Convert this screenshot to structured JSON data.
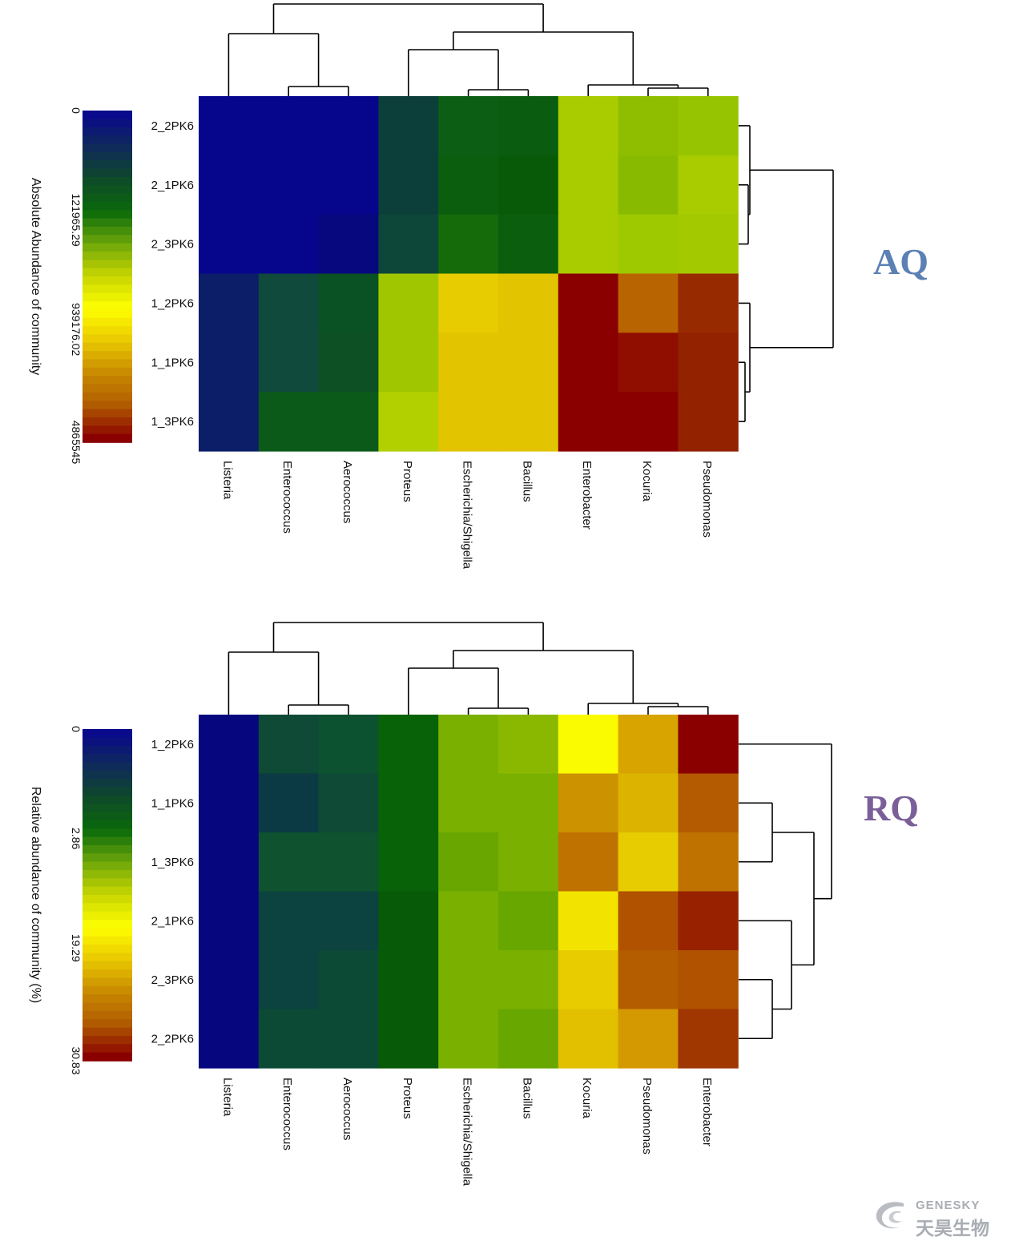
{
  "colors": {
    "aq_tag": "#5b80b4",
    "rq_tag": "#7a5f99",
    "dendrogram": "#000000",
    "brand": "#a9adb3",
    "colorscale": [
      "#0a0a8c",
      "#0f2a5a",
      "#0e4a2a",
      "#0a6a0a",
      "#6fa80a",
      "#c8d600",
      "#ffff00",
      "#e8c800",
      "#c88a00",
      "#b05a00",
      "#8a0000"
    ]
  },
  "labels": {
    "aq": "AQ",
    "rq": "RQ"
  },
  "brand": {
    "en": "GENESKY",
    "cn": "天昊生物",
    "icon": "genesky-logo-icon"
  },
  "chart_data": [
    {
      "type": "heatmap",
      "legend_title": "Absolute Abundance of community",
      "legend_ticks": [
        "0",
        "121965.29",
        "939176.02",
        "4865545"
      ],
      "rows": [
        "2_2PK6",
        "2_1PK6",
        "2_3PK6",
        "1_2PK6",
        "1_1PK6",
        "1_3PK6"
      ],
      "columns": [
        "Listeria",
        "Enterococcus",
        "Aerococcus",
        "Proteus",
        "Escherichia/Shigella",
        "Bacillus",
        "Enterobacter",
        "Kocuria",
        "Pseudomonas"
      ],
      "cells": [
        [
          "#06068c",
          "#06068c",
          "#06068c",
          "#0c3f3a",
          "#0b5e14",
          "#0a5c10",
          "#a9cc00",
          "#8fbe00",
          "#96c400"
        ],
        [
          "#06068c",
          "#06068c",
          "#06068c",
          "#0c3f3a",
          "#0a5e0e",
          "#085a08",
          "#a9cc00",
          "#88bb00",
          "#a8cc00"
        ],
        [
          "#06068c",
          "#06068c",
          "#08087e",
          "#0c473a",
          "#156a0a",
          "#0a5e0e",
          "#a9cc00",
          "#9ec800",
          "#a3ca00"
        ],
        [
          "#0c1e68",
          "#0f4a3c",
          "#0a5224",
          "#a0c600",
          "#e6cc00",
          "#e2c400",
          "#8a0000",
          "#b86400",
          "#982a00"
        ],
        [
          "#0c1e68",
          "#0f4a3c",
          "#0c5024",
          "#a0c600",
          "#e2c400",
          "#e2c400",
          "#8a0000",
          "#900e00",
          "#922200"
        ],
        [
          "#0c1e68",
          "#0b5a1a",
          "#0b5a1a",
          "#b2d000",
          "#e2c400",
          "#e2c400",
          "#8a0000",
          "#8a0000",
          "#922200"
        ]
      ]
    },
    {
      "type": "heatmap",
      "legend_title": "Relative abundance of community (%)",
      "legend_ticks": [
        "0",
        "2.86",
        "19.29",
        "30.83"
      ],
      "rows": [
        "1_2PK6",
        "1_1PK6",
        "1_3PK6",
        "2_1PK6",
        "2_3PK6",
        "2_2PK6"
      ],
      "columns": [
        "Listeria",
        "Enterococcus",
        "Aerococcus",
        "Proteus",
        "Escherichia/Shigella",
        "Bacillus",
        "Kocuria",
        "Pseudomonas",
        "Enterobacter"
      ],
      "cells": [
        [
          "#06067e",
          "#0e4a36",
          "#0c5230",
          "#086208",
          "#7ab000",
          "#8ab800",
          "#fafa00",
          "#d8a400",
          "#8a0000"
        ],
        [
          "#06067e",
          "#0c3a44",
          "#0e4a36",
          "#086208",
          "#7ab000",
          "#7ab000",
          "#cc9200",
          "#dcb400",
          "#b45a00"
        ],
        [
          "#06067e",
          "#0e5230",
          "#0e5230",
          "#086208",
          "#6aa600",
          "#7ab000",
          "#c07200",
          "#e6cc00",
          "#c07200"
        ],
        [
          "#06067e",
          "#0c4240",
          "#0c4240",
          "#065a08",
          "#7ab000",
          "#68a600",
          "#f2e400",
          "#b05200",
          "#982200"
        ],
        [
          "#06067e",
          "#0c4240",
          "#0c4a36",
          "#065a08",
          "#7ab000",
          "#7ab000",
          "#e8cc00",
          "#b45c00",
          "#b05200"
        ],
        [
          "#06067e",
          "#0c4a36",
          "#0c4a36",
          "#065a08",
          "#7ab000",
          "#68a600",
          "#e2c000",
          "#d49800",
          "#a03600"
        ]
      ]
    }
  ]
}
